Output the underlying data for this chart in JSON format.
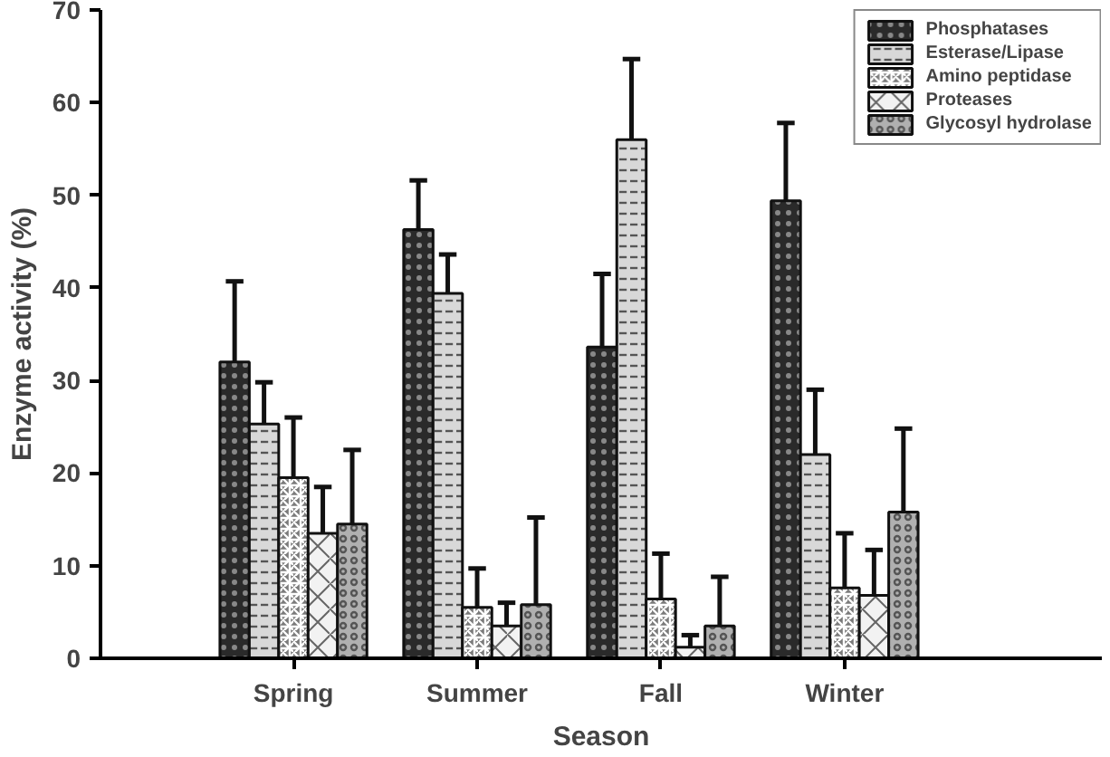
{
  "chart_data": {
    "type": "bar",
    "xlabel": "Season",
    "ylabel": "Enzyme activity (%)",
    "categories": [
      "Spring",
      "Summer",
      "Fall",
      "Winter"
    ],
    "series": [
      {
        "name": "Phosphatases",
        "color": "#2a2a2a",
        "values": [
          32,
          46.3,
          33.6,
          49.4
        ],
        "errors": [
          [
            32,
            40.7
          ],
          [
            46.3,
            51.6
          ],
          [
            33.6,
            41.5
          ],
          [
            49.4,
            57.8
          ]
        ]
      },
      {
        "name": "Esterase/Lipase",
        "color": "#d8d8d8",
        "values": [
          25.3,
          39.4,
          56,
          22
        ],
        "errors": [
          [
            25.3,
            29.8
          ],
          [
            39.4,
            43.6
          ],
          [
            56,
            64.7
          ],
          [
            22,
            29
          ]
        ]
      },
      {
        "name": "Amino peptidase",
        "color": "#7a7a7a",
        "values": [
          19.5,
          5.5,
          6.4,
          7.6
        ],
        "errors": [
          [
            19.5,
            26
          ],
          [
            5.5,
            9.7
          ],
          [
            6.4,
            11.3
          ],
          [
            7.6,
            13.5
          ]
        ]
      },
      {
        "name": "Proteases",
        "color": "#f2f2f2",
        "values": [
          13.5,
          3.5,
          1.2,
          6.8
        ],
        "errors": [
          [
            13.5,
            18.5
          ],
          [
            3.5,
            6
          ],
          [
            1.2,
            2.5
          ],
          [
            6.8,
            11.7
          ]
        ]
      },
      {
        "name": "Glycosyl hydrolase",
        "color": "#b0b0b0",
        "values": [
          14.5,
          5.8,
          3.5,
          15.8
        ],
        "errors": [
          [
            14.5,
            22.5
          ],
          [
            5.8,
            15.2
          ],
          [
            3.5,
            8.8
          ],
          [
            15.8,
            24.8
          ]
        ]
      }
    ],
    "ylim": [
      0,
      70
    ],
    "yticks": [
      0,
      10,
      20,
      30,
      40,
      50,
      60,
      70
    ],
    "grid": false,
    "legend": "top right"
  }
}
